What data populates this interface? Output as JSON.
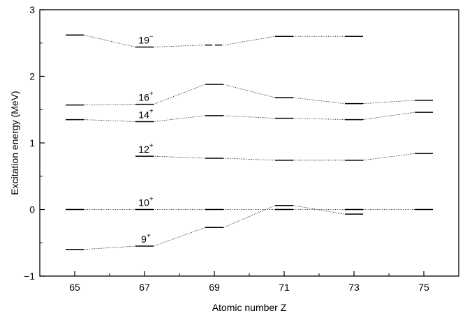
{
  "chart_data": {
    "type": "line",
    "title": "",
    "xlabel": "Atomic number Z",
    "ylabel": "Excitation energy (MeV)",
    "xlim": [
      64,
      76
    ],
    "ylim": [
      -1,
      3
    ],
    "xticks": [
      65,
      67,
      69,
      71,
      73,
      75
    ],
    "xtick_labels": [
      "65",
      "67",
      "69",
      "71",
      "73",
      "75"
    ],
    "yticks": [
      -1,
      0,
      1,
      2,
      3
    ],
    "ytick_labels": [
      "−1",
      "0",
      "1",
      "2",
      "3"
    ],
    "grid": false,
    "series": [
      {
        "name": "19⁻",
        "label_base": "19",
        "label_sup": "−",
        "label_z": 67,
        "x": [
          65,
          67,
          69,
          71,
          73
        ],
        "y": [
          2.62,
          2.44,
          2.47,
          2.6,
          2.6
        ],
        "dashed": [
          false,
          false,
          true,
          false,
          false
        ]
      },
      {
        "name": "16⁺",
        "label_base": "16",
        "label_sup": "+",
        "label_z": 67,
        "x": [
          65,
          67,
          69,
          71,
          73,
          75
        ],
        "y": [
          1.57,
          1.58,
          1.88,
          1.68,
          1.59,
          1.64
        ]
      },
      {
        "name": "14⁺",
        "label_base": "14",
        "label_sup": "+",
        "label_z": 67,
        "x": [
          65,
          67,
          69,
          71,
          73,
          75
        ],
        "y": [
          1.35,
          1.32,
          1.41,
          1.37,
          1.35,
          1.46
        ]
      },
      {
        "name": "12⁺",
        "label_base": "12",
        "label_sup": "+",
        "label_z": 67,
        "x": [
          67,
          69,
          71,
          73,
          75
        ],
        "y": [
          0.8,
          0.77,
          0.74,
          0.74,
          0.84
        ]
      },
      {
        "name": "10⁺",
        "label_base": "10",
        "label_sup": "+",
        "label_z": 67,
        "x": [
          65,
          67,
          69,
          71,
          73,
          75
        ],
        "y": [
          0,
          0,
          0,
          0,
          0,
          0
        ]
      },
      {
        "name": "9⁺",
        "label_base": "9",
        "label_sup": "+",
        "label_z": 67,
        "x": [
          65,
          67,
          69,
          71,
          73
        ],
        "y": [
          -0.6,
          -0.55,
          -0.27,
          0.06,
          -0.07
        ]
      }
    ]
  }
}
